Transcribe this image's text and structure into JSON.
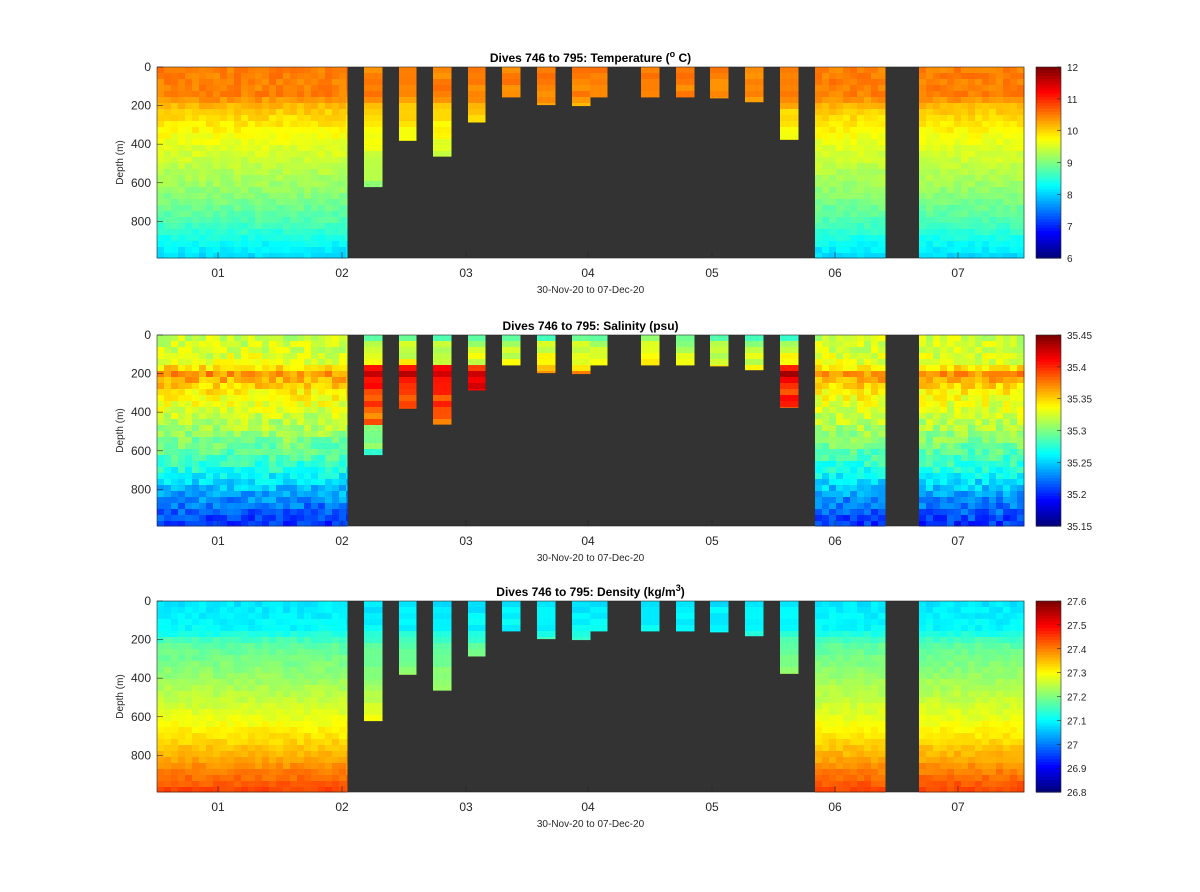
{
  "chart_data": [
    {
      "type": "heatmap",
      "variable": "temperature",
      "title": "Dives 746 to 795: Temperature (",
      "title_sup": "o",
      "title_end": " C)",
      "xlabel": "30-Nov-20 to 07-Dec-20",
      "ylabel": "Depth (m)",
      "x_ticks": [
        "01",
        "02",
        "03",
        "04",
        "05",
        "06",
        "07"
      ],
      "y_ticks": [
        "0",
        "200",
        "400",
        "600",
        "800"
      ],
      "ylim": [
        0,
        990
      ],
      "colorbar": {
        "min": 6,
        "max": 12,
        "ticks": [
          "12",
          "11",
          "10",
          "9",
          "8",
          "7",
          "6"
        ]
      },
      "profile_values": [
        {
          "depth": 0,
          "value": 10.5
        },
        {
          "depth": 150,
          "value": 10.5
        },
        {
          "depth": 210,
          "value": 10.1
        },
        {
          "depth": 400,
          "value": 9.6
        },
        {
          "depth": 600,
          "value": 9.2
        },
        {
          "depth": 800,
          "value": 8.7
        },
        {
          "depth": 990,
          "value": 8.0
        }
      ]
    },
    {
      "type": "heatmap",
      "variable": "salinity",
      "title": "Dives 746 to 795: Salinity (psu)",
      "xlabel": "30-Nov-20 to 07-Dec-20",
      "ylabel": "Depth (m)",
      "x_ticks": [
        "01",
        "02",
        "03",
        "04",
        "05",
        "06",
        "07"
      ],
      "y_ticks": [
        "0",
        "200",
        "400",
        "600",
        "800"
      ],
      "ylim": [
        0,
        990
      ],
      "colorbar": {
        "min": 35.15,
        "max": 35.45,
        "ticks": [
          "35.45",
          "35.4",
          "35.35",
          "35.3",
          "35.25",
          "35.2",
          "35.15"
        ]
      },
      "profile_values": [
        {
          "depth": 0,
          "value": 35.32
        },
        {
          "depth": 150,
          "value": 35.33
        },
        {
          "depth": 200,
          "value": 35.37
        },
        {
          "depth": 300,
          "value": 35.34
        },
        {
          "depth": 500,
          "value": 35.31
        },
        {
          "depth": 700,
          "value": 35.27
        },
        {
          "depth": 850,
          "value": 35.23
        },
        {
          "depth": 990,
          "value": 35.2
        }
      ]
    },
    {
      "type": "heatmap",
      "variable": "density",
      "title": "Dives 746 to 795: Density (kg/m",
      "title_sup": "3",
      "title_end": ")",
      "xlabel": "30-Nov-20 to 07-Dec-20",
      "ylabel": "Depth (m)",
      "x_ticks": [
        "01",
        "02",
        "03",
        "04",
        "05",
        "06",
        "07"
      ],
      "y_ticks": [
        "0",
        "200",
        "400",
        "600",
        "800"
      ],
      "ylim": [
        0,
        990
      ],
      "colorbar": {
        "min": 26.8,
        "max": 27.6,
        "ticks": [
          "27.6",
          "27.5",
          "27.4",
          "27.3",
          "27.2",
          "27.1",
          "27",
          "26.9",
          "26.8"
        ]
      },
      "profile_values": [
        {
          "depth": 0,
          "value": 27.08
        },
        {
          "depth": 150,
          "value": 27.1
        },
        {
          "depth": 220,
          "value": 27.17
        },
        {
          "depth": 400,
          "value": 27.22
        },
        {
          "depth": 600,
          "value": 27.28
        },
        {
          "depth": 800,
          "value": 27.36
        },
        {
          "depth": 990,
          "value": 27.45
        }
      ]
    }
  ],
  "colors": {
    "background": "#333333",
    "figure": "#ffffff"
  }
}
